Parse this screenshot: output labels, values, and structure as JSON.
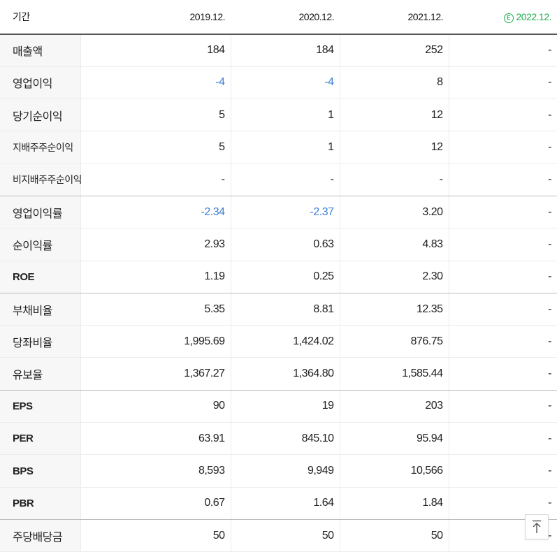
{
  "header": {
    "label": "기간",
    "periods": [
      "2019.12.",
      "2020.12.",
      "2021.12.",
      "2022.12."
    ],
    "estimate_badge": "E"
  },
  "rows": [
    {
      "label": "매출액",
      "values": [
        "184",
        "184",
        "252",
        "-"
      ]
    },
    {
      "label": "영업이익",
      "values": [
        "-4",
        "-4",
        "8",
        "-"
      ]
    },
    {
      "label": "당기순이익",
      "values": [
        "5",
        "1",
        "12",
        "-"
      ]
    },
    {
      "label": "지배주주순이익",
      "values": [
        "5",
        "1",
        "12",
        "-"
      ]
    },
    {
      "label": "비지배주주순이익",
      "values": [
        "-",
        "-",
        "-",
        "-"
      ]
    },
    {
      "label": "영업이익률",
      "values": [
        "-2.34",
        "-2.37",
        "3.20",
        "-"
      ]
    },
    {
      "label": "순이익률",
      "values": [
        "2.93",
        "0.63",
        "4.83",
        "-"
      ]
    },
    {
      "label": "ROE",
      "values": [
        "1.19",
        "0.25",
        "2.30",
        "-"
      ]
    },
    {
      "label": "부채비율",
      "values": [
        "5.35",
        "8.81",
        "12.35",
        "-"
      ]
    },
    {
      "label": "당좌비율",
      "values": [
        "1,995.69",
        "1,424.02",
        "876.75",
        "-"
      ]
    },
    {
      "label": "유보율",
      "values": [
        "1,367.27",
        "1,364.80",
        "1,585.44",
        "-"
      ]
    },
    {
      "label": "EPS",
      "values": [
        "90",
        "19",
        "203",
        "-"
      ]
    },
    {
      "label": "PER",
      "values": [
        "63.91",
        "845.10",
        "95.94",
        "-"
      ]
    },
    {
      "label": "BPS",
      "values": [
        "8,593",
        "9,949",
        "10,566",
        "-"
      ]
    },
    {
      "label": "PBR",
      "values": [
        "0.67",
        "1.64",
        "1.84",
        "-"
      ]
    },
    {
      "label": "주당배당금",
      "values": [
        "50",
        "50",
        "50",
        "-"
      ]
    }
  ],
  "colors": {
    "negative": "#3d7fd1",
    "estimate": "#1fae4b"
  },
  "top_button": {
    "icon": "arrow-up-to-top-icon"
  }
}
